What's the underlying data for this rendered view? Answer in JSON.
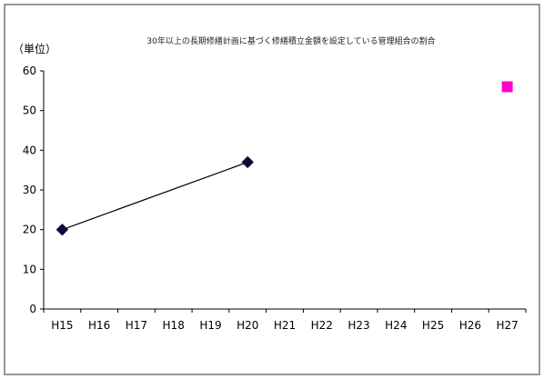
{
  "chart_data": {
    "type": "line",
    "title": "30年以上の長期修繕計画に基づく修繕積立金額を設定している管理組合の割合",
    "unit_label": "（単位）",
    "categories": [
      "H15",
      "H16",
      "H17",
      "H18",
      "H19",
      "H20",
      "H21",
      "H22",
      "H23",
      "H24",
      "H25",
      "H26",
      "H27"
    ],
    "ylim": [
      0,
      60
    ],
    "yticks": [
      0,
      10,
      20,
      30,
      40,
      50,
      60
    ],
    "grid": false,
    "series": [
      {
        "color": "#0a0a3c",
        "marker": "diamond",
        "points": [
          {
            "x": "H15",
            "y": 20
          },
          {
            "x": "H20",
            "y": 37
          }
        ]
      },
      {
        "color": "#ff00cc",
        "marker": "square",
        "points": [
          {
            "x": "H27",
            "y": 56
          }
        ]
      }
    ]
  }
}
